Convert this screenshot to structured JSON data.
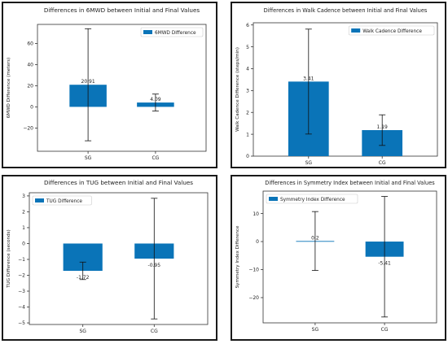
{
  "chart_data": [
    {
      "type": "bar",
      "title": "Differences in 6MWD between Initial and Final Values",
      "ylabel": "6MWD Difference (meters)",
      "categories": [
        "SG",
        "CG"
      ],
      "series": [
        {
          "name": "6MWD Difference",
          "values": [
            20.91,
            4.09
          ],
          "error": [
            53,
            8
          ]
        }
      ],
      "value_labels": [
        "20.91",
        "4.09"
      ],
      "ylim": [
        -42,
        78
      ],
      "yticks": [
        -20,
        0,
        20,
        40,
        60
      ],
      "ytick_labels": [
        "−20",
        "0",
        "20",
        "40",
        "60"
      ],
      "legend": "top-right",
      "grid": false,
      "color": "#0a74b8"
    },
    {
      "type": "bar",
      "title": "Differences in Walk Cadence between Initial and Final Values",
      "ylabel": "Walk Cadence Difference (steps/min)",
      "categories": [
        "SG",
        "CG"
      ],
      "series": [
        {
          "name": "Walk Cadence Difference",
          "values": [
            3.41,
            1.19
          ],
          "error": [
            2.4,
            0.7
          ]
        }
      ],
      "value_labels": [
        "3.41",
        "1.19"
      ],
      "ylim": [
        0,
        6.1
      ],
      "yticks": [
        0,
        1,
        2,
        3,
        4,
        5,
        6
      ],
      "ytick_labels": [
        "0",
        "1",
        "2",
        "3",
        "4",
        "5",
        "6"
      ],
      "legend": "top-right",
      "grid": false,
      "color": "#0a74b8"
    },
    {
      "type": "bar",
      "title": "Differences in TUG between Initial and Final Values",
      "ylabel": "TUG Difference (seconds)",
      "categories": [
        "SG",
        "CG"
      ],
      "series": [
        {
          "name": "TUG Difference",
          "values": [
            -1.72,
            -0.95
          ],
          "error": [
            0.55,
            3.8
          ]
        }
      ],
      "value_labels": [
        "-1.72",
        "-0.95"
      ],
      "ylim": [
        -5.1,
        3.2
      ],
      "yticks": [
        -5,
        -4,
        -3,
        -2,
        -1,
        0,
        1,
        2,
        3
      ],
      "ytick_labels": [
        "−5",
        "−4",
        "−3",
        "−2",
        "−1",
        "0",
        "1",
        "2",
        "3"
      ],
      "legend": "top-left",
      "grid": false,
      "color": "#0a74b8"
    },
    {
      "type": "bar",
      "title": "Differences in Symmetry Index between Initial and Final Values",
      "ylabel": "Symmetry Index Difference",
      "categories": [
        "SG",
        "CG"
      ],
      "series": [
        {
          "name": "Symmetry Index Difference",
          "values": [
            0.2,
            -5.41
          ],
          "error": [
            10.5,
            21.5
          ]
        }
      ],
      "value_labels": [
        "0.2",
        "-5.41"
      ],
      "ylim": [
        -29,
        18
      ],
      "yticks": [
        -20,
        -10,
        0,
        10
      ],
      "ytick_labels": [
        "−20",
        "−10",
        "0",
        "10"
      ],
      "legend": "top-left",
      "grid": false,
      "color": "#0a74b8"
    }
  ]
}
